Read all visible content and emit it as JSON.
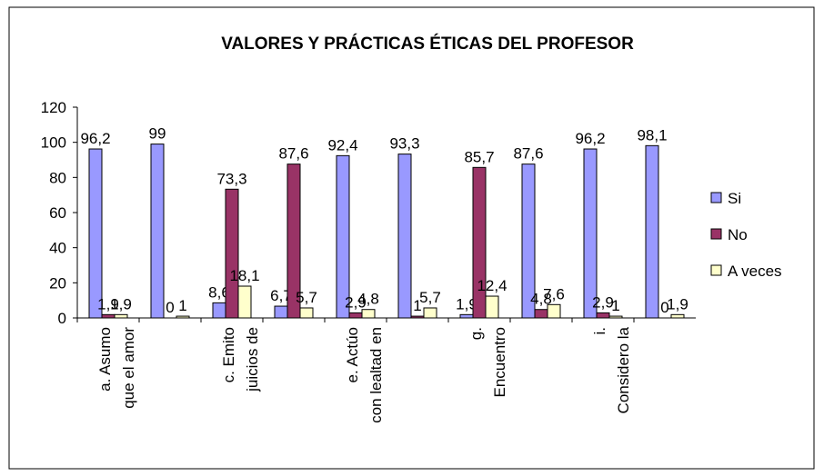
{
  "chart_data": {
    "type": "bar",
    "title": "VALORES Y PRÁCTICAS ÉTICAS DEL PROFESOR",
    "categories": [
      [
        "a.      Asumo",
        "que el amor"
      ],
      null,
      [
        "c.      Emito",
        "juicios de"
      ],
      null,
      [
        "e.      Actúo",
        "con lealtad en"
      ],
      null,
      [
        "g.",
        "Encuentro"
      ],
      null,
      [
        "i.",
        "Considero la"
      ],
      null
    ],
    "series": [
      {
        "name": "Si",
        "color": "#9999ff",
        "values": [
          96.2,
          99,
          8.6,
          6.7,
          92.4,
          93.3,
          1.9,
          87.6,
          96.2,
          98.1
        ],
        "value_labels": [
          "96,2",
          "99",
          "8,6",
          "6,7",
          "92,4",
          "93,3",
          "1,9",
          "87,6",
          "96,2",
          "98,1"
        ]
      },
      {
        "name": "No",
        "color": "#993366",
        "values": [
          1.9,
          0,
          73.3,
          87.6,
          2.9,
          1,
          85.7,
          4.8,
          2.9,
          0
        ],
        "value_labels": [
          "1,9",
          "0",
          "73,3",
          "87,6",
          "2,9",
          "1",
          "85,7",
          "4,8",
          "2,9",
          "0"
        ]
      },
      {
        "name": "A veces",
        "color": "#ffffcc",
        "values": [
          1.9,
          1,
          18.1,
          5.7,
          4.8,
          5.7,
          12.4,
          7.6,
          1,
          1.9
        ],
        "value_labels": [
          "1,9",
          "1",
          "18,1",
          "5,7",
          "4,8",
          "5,7",
          "12,4",
          "7,6",
          "1",
          "1,9"
        ]
      }
    ],
    "ylim": [
      0,
      120
    ],
    "yticks": [
      0,
      20,
      40,
      60,
      80,
      100,
      120
    ],
    "grid": false,
    "legend": "right"
  }
}
